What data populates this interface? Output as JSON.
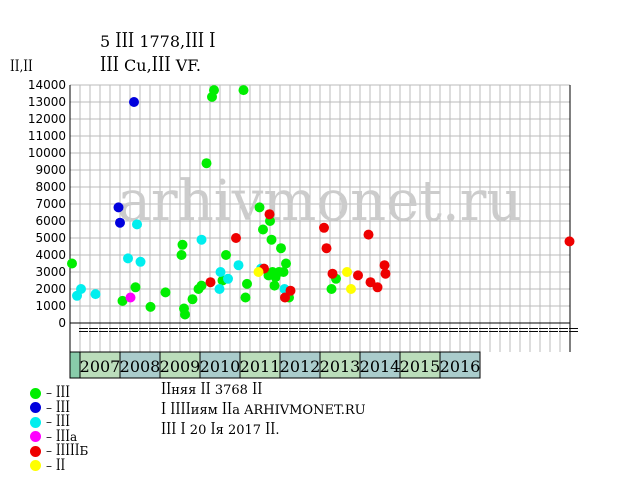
{
  "title_line1": "5 ꟾꟾꟾ 1778,ꟾꟾꟾ ꟾ",
  "title_line2": "ꟾꟾꟾ Cu,ꟾꟾꟾ VF.",
  "notes": [
    "ꟾꟾняя ꟾꟾ 3768 ꟾꟾ",
    "ꟾ ꟾꟾꟾꟾиям ꟾꟾа ARHIVMONET.RU",
    "ꟾꟾꟾ ꟾ 20 ꟾя 2017 ꟾꟾ."
  ],
  "watermark": "arhivmonet.ru",
  "colors": {
    "green": "#00ee00",
    "blue": "#0000dd",
    "cyan": "#00eeee",
    "magenta": "#ff00ff",
    "red": "#ee0000",
    "yellow": "#ffff00",
    "grid": "#bbbbbb",
    "year_bar": "#bbddbb",
    "year_bar_alt": "#aacccc",
    "first_cell": "#88ccaa"
  },
  "legend": [
    {
      "label": "– ꟾꟾꟾ",
      "color": "#00ee00"
    },
    {
      "label": "– ꟾꟾꟾ",
      "color": "#0000dd"
    },
    {
      "label": "– ꟾꟾꟾ",
      "color": "#00eeee"
    },
    {
      "label": "– ꟾꟾꟾа",
      "color": "#ff00ff"
    },
    {
      "label": "– ꟾꟾꟾꟾꟾБ",
      "color": "#ee0000"
    },
    {
      "label": "– ꟾꟾ",
      "color": "#ffff00"
    }
  ],
  "chart_data": {
    "type": "scatter",
    "ylabel": "ꟾꟾ,ꟾꟾ",
    "ylim": [
      0,
      14000
    ],
    "yticks": [
      0,
      1000,
      2000,
      3000,
      4000,
      5000,
      6000,
      7000,
      8000,
      9000,
      10000,
      11000,
      12000,
      13000,
      14000
    ],
    "grid": true,
    "quarter_labels": [
      "ꟾꟾ",
      "ꟾꟾ",
      "ꟾꟾ",
      "ꟾꟾ",
      "ꟾꟾ",
      "ꟾꟾ",
      "ꟾꟾ",
      "ꟾꟾ",
      "ꟾꟾ",
      "ꟾꟾ",
      "ꟾꟾ",
      "ꟾꟾ",
      "ꟾꟾ",
      "ꟾꟾ",
      "ꟾꟾ",
      "ꟾꟾ",
      "ꟾꟾ",
      "ꟾꟾ",
      "ꟾꟾ",
      "ꟾꟾ",
      "ꟾꟾ",
      "ꟾꟾ",
      "ꟾꟾ",
      "ꟾꟾ",
      "ꟾꟾ",
      "ꟾꟾ",
      "ꟾꟾ",
      "ꟾꟾ",
      "ꟾꟾ",
      "ꟾꟾ",
      "ꟾꟾ",
      "ꟾꟾ",
      "ꟾꟾ",
      "ꟾꟾ",
      "ꟾꟾ",
      "ꟾꟾ",
      "ꟾꟾ",
      "ꟾꟾ",
      "ꟾꟾ",
      "ꟾꟾ",
      "ꟾꟾ",
      "ꟾꟾ",
      "ꟾꟾ",
      "ꟾꟾ",
      "ꟾꟾ",
      "ꟾꟾ",
      "ꟾꟾ",
      "ꟾꟾ",
      "ꟾꟾ",
      "ꟾꟾ"
    ],
    "years": [
      "2007",
      "2008",
      "2009",
      "2010",
      "2011",
      "2012",
      "2013",
      "2014",
      "2015",
      "2016"
    ],
    "x_start": 2006.75,
    "x_end": 2016.75,
    "series": [
      {
        "color": "green",
        "points": [
          [
            2006.79,
            3500
          ],
          [
            2007.8,
            1300
          ],
          [
            2008.06,
            2100
          ],
          [
            2008.36,
            950
          ],
          [
            2008.66,
            1800
          ],
          [
            2008.98,
            4000
          ],
          [
            2009.0,
            4600
          ],
          [
            2009.03,
            850
          ],
          [
            2009.05,
            500
          ],
          [
            2009.2,
            1400
          ],
          [
            2009.32,
            2000
          ],
          [
            2009.38,
            2200
          ],
          [
            2009.48,
            9400
          ],
          [
            2009.59,
            13300
          ],
          [
            2009.63,
            13700
          ],
          [
            2009.8,
            2500
          ],
          [
            2009.87,
            4000
          ],
          [
            2010.22,
            13700
          ],
          [
            2010.26,
            1500
          ],
          [
            2010.29,
            2300
          ],
          [
            2010.54,
            6800
          ],
          [
            2010.61,
            5500
          ],
          [
            2010.72,
            2800
          ],
          [
            2010.75,
            6000
          ],
          [
            2010.78,
            4900
          ],
          [
            2010.8,
            3000
          ],
          [
            2010.84,
            2200
          ],
          [
            2010.86,
            2700
          ],
          [
            2010.93,
            3000
          ],
          [
            2010.97,
            4400
          ],
          [
            2011.02,
            3000
          ],
          [
            2011.07,
            3500
          ],
          [
            2011.13,
            1500
          ],
          [
            2011.98,
            2000
          ],
          [
            2012.07,
            2600
          ]
        ]
      },
      {
        "color": "blue",
        "points": [
          [
            2007.72,
            6800
          ],
          [
            2007.75,
            5900
          ],
          [
            2008.03,
            13000
          ]
        ]
      },
      {
        "color": "cyan",
        "points": [
          [
            2006.89,
            1600
          ],
          [
            2006.97,
            2000
          ],
          [
            2007.26,
            1700
          ],
          [
            2008.09,
            5800
          ],
          [
            2008.16,
            3600
          ],
          [
            2007.91,
            3800
          ],
          [
            2009.38,
            4900
          ],
          [
            2009.74,
            2000
          ],
          [
            2009.76,
            3000
          ],
          [
            2009.91,
            2600
          ],
          [
            2010.12,
            3400
          ],
          [
            2010.57,
            3200
          ],
          [
            2011.04,
            2000
          ]
        ]
      },
      {
        "color": "magenta",
        "points": [
          [
            2007.96,
            1500
          ]
        ]
      },
      {
        "color": "red",
        "points": [
          [
            2009.56,
            2400
          ],
          [
            2010.07,
            5000
          ],
          [
            2010.63,
            3200
          ],
          [
            2010.74,
            6400
          ],
          [
            2011.05,
            1500
          ],
          [
            2011.16,
            1900
          ],
          [
            2011.83,
            5600
          ],
          [
            2011.88,
            4400
          ],
          [
            2012.0,
            2900
          ],
          [
            2012.51,
            2800
          ],
          [
            2012.72,
            5200
          ],
          [
            2012.76,
            2400
          ],
          [
            2012.9,
            2100
          ],
          [
            2013.04,
            3400
          ],
          [
            2013.06,
            2900
          ],
          [
            2016.74,
            4800
          ]
        ]
      },
      {
        "color": "yellow",
        "points": [
          [
            2010.52,
            3000
          ],
          [
            2012.29,
            3000
          ],
          [
            2012.37,
            2000
          ]
        ]
      }
    ]
  }
}
